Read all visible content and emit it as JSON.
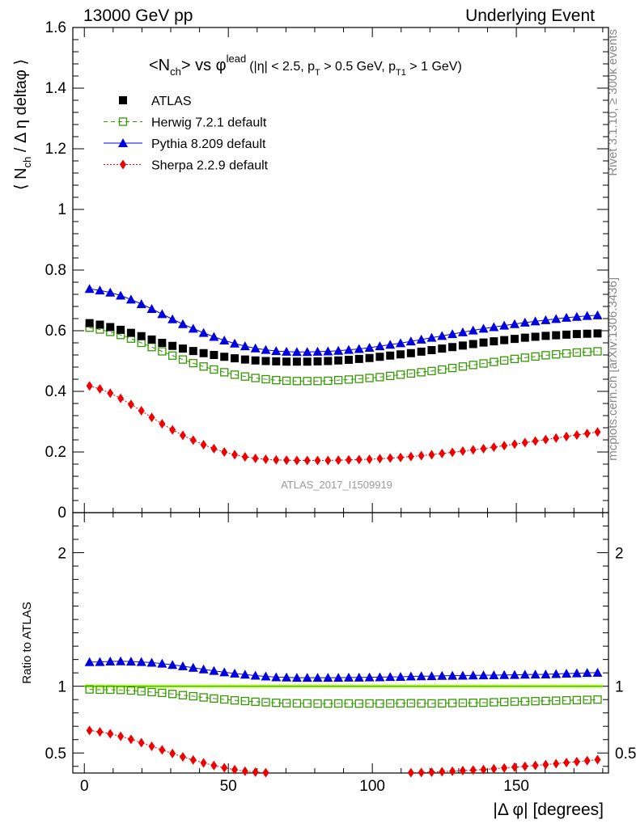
{
  "header": {
    "left": "13000 GeV pp",
    "right": "Underlying Event"
  },
  "side_labels": {
    "rivet": "Rivet 3.1.10, ≥ 300k events",
    "mcplots": "mcplots.cern.ch [arXiv:1306.3436]"
  },
  "chart_data": [
    {
      "type": "scatter",
      "panel": "main",
      "title_parts": {
        "prefix": "<N",
        "sub": "ch",
        "mid": "> vs φ",
        "sup": "lead",
        "cuts": "(|η| < 2.5, p",
        "cuts_sub1": "T",
        "cuts_mid": " > 0.5 GeV, p",
        "cuts_sub2": "T1",
        "cuts_end": " > 1 GeV)"
      },
      "ylabel": "⟨ N_ch / Δη deltaφ ⟩",
      "ylabel_parts": {
        "a": "⟨ N",
        "sub": "ch",
        "b": " / Δ η deltaφ ⟩"
      },
      "ylim": [
        0,
        1.6
      ],
      "yticks": [
        "0",
        "0.2",
        "0.4",
        "0.6",
        "0.8",
        "1",
        "1.2",
        "1.4",
        "1.6"
      ],
      "watermark": "ATLAS_2017_I1509919",
      "legend_position": "top-left",
      "x": [
        1.8,
        5.4,
        9,
        12.6,
        16.2,
        19.8,
        23.4,
        27,
        30.6,
        34.2,
        37.8,
        41.4,
        45,
        48.6,
        52.2,
        55.8,
        59.4,
        63,
        66.6,
        70.2,
        73.8,
        77.4,
        81,
        84.6,
        88.2,
        91.8,
        95.4,
        99,
        102.6,
        106.2,
        109.8,
        113.4,
        117,
        120.6,
        124.2,
        127.8,
        131.4,
        135,
        138.6,
        142.2,
        145.8,
        149.4,
        153,
        156.6,
        160.2,
        163.8,
        167.4,
        171,
        174.6,
        178.2
      ],
      "series": [
        {
          "name": "ATLAS",
          "color": "#000000",
          "marker": "square-filled",
          "values": [
            0.625,
            0.62,
            0.612,
            0.603,
            0.593,
            0.582,
            0.571,
            0.56,
            0.55,
            0.541,
            0.533,
            0.526,
            0.52,
            0.514,
            0.509,
            0.505,
            0.502,
            0.5,
            0.499,
            0.498,
            0.498,
            0.498,
            0.499,
            0.5,
            0.502,
            0.504,
            0.507,
            0.51,
            0.514,
            0.518,
            0.522,
            0.526,
            0.531,
            0.536,
            0.541,
            0.546,
            0.551,
            0.556,
            0.561,
            0.565,
            0.569,
            0.573,
            0.577,
            0.58,
            0.583,
            0.585,
            0.587,
            0.589,
            0.59,
            0.591
          ]
        },
        {
          "name": "Herwig 7.2.1 default",
          "color": "#339900",
          "marker": "square-open",
          "dash": "5,4",
          "values": [
            0.61,
            0.604,
            0.596,
            0.586,
            0.574,
            0.56,
            0.546,
            0.532,
            0.518,
            0.505,
            0.493,
            0.482,
            0.472,
            0.463,
            0.455,
            0.449,
            0.444,
            0.44,
            0.437,
            0.435,
            0.434,
            0.434,
            0.434,
            0.435,
            0.437,
            0.439,
            0.441,
            0.444,
            0.447,
            0.451,
            0.455,
            0.459,
            0.463,
            0.467,
            0.472,
            0.477,
            0.482,
            0.487,
            0.492,
            0.497,
            0.502,
            0.507,
            0.511,
            0.515,
            0.519,
            0.522,
            0.525,
            0.528,
            0.53,
            0.532
          ]
        },
        {
          "name": "Pythia 8.209 default",
          "color": "#0000dd",
          "marker": "triangle-filled",
          "values": [
            0.738,
            0.733,
            0.726,
            0.716,
            0.703,
            0.688,
            0.672,
            0.655,
            0.638,
            0.622,
            0.607,
            0.593,
            0.58,
            0.568,
            0.558,
            0.549,
            0.542,
            0.537,
            0.533,
            0.531,
            0.53,
            0.53,
            0.531,
            0.532,
            0.534,
            0.537,
            0.54,
            0.544,
            0.549,
            0.554,
            0.559,
            0.565,
            0.571,
            0.577,
            0.583,
            0.589,
            0.595,
            0.601,
            0.607,
            0.612,
            0.617,
            0.622,
            0.627,
            0.631,
            0.635,
            0.639,
            0.643,
            0.646,
            0.649,
            0.651
          ]
        },
        {
          "name": "Sherpa 2.2.9 default",
          "color": "#ee0000",
          "marker": "diamond-filled",
          "dash": "2,2",
          "values": [
            0.418,
            0.408,
            0.394,
            0.377,
            0.357,
            0.336,
            0.314,
            0.293,
            0.273,
            0.255,
            0.239,
            0.224,
            0.211,
            0.2,
            0.191,
            0.184,
            0.179,
            0.176,
            0.174,
            0.173,
            0.172,
            0.172,
            0.172,
            0.172,
            0.173,
            0.174,
            0.175,
            0.176,
            0.178,
            0.18,
            0.182,
            0.185,
            0.188,
            0.191,
            0.195,
            0.199,
            0.203,
            0.207,
            0.211,
            0.216,
            0.221,
            0.226,
            0.231,
            0.236,
            0.241,
            0.246,
            0.251,
            0.256,
            0.261,
            0.266
          ]
        }
      ]
    },
    {
      "type": "scatter",
      "panel": "ratio",
      "ylabel": "Ratio to ATLAS",
      "ylim": [
        0.35,
        2.3
      ],
      "yticks": [
        "0.5",
        "1",
        "2"
      ],
      "xlabel": "|Δ φ| [degrees]",
      "xlim": [
        -4,
        182
      ],
      "xticks": [
        "0",
        "50",
        "100",
        "150"
      ],
      "band": {
        "low": 0.985,
        "high": 1.015,
        "color": "#ccff66",
        "line_color": "#339900"
      },
      "series_ratio": [
        {
          "name": "Herwig 7.2.1 default",
          "color": "#339900",
          "values": [
            0.976,
            0.974,
            0.974,
            0.972,
            0.968,
            0.962,
            0.956,
            0.95,
            0.942,
            0.933,
            0.925,
            0.916,
            0.908,
            0.901,
            0.894,
            0.889,
            0.884,
            0.88,
            0.876,
            0.873,
            0.872,
            0.871,
            0.87,
            0.87,
            0.871,
            0.871,
            0.87,
            0.871,
            0.87,
            0.871,
            0.872,
            0.873,
            0.872,
            0.871,
            0.872,
            0.874,
            0.875,
            0.876,
            0.877,
            0.88,
            0.882,
            0.885,
            0.886,
            0.888,
            0.89,
            0.892,
            0.894,
            0.896,
            0.898,
            0.9
          ]
        },
        {
          "name": "Pythia 8.209 default",
          "color": "#0000dd",
          "values": [
            1.181,
            1.182,
            1.186,
            1.187,
            1.185,
            1.182,
            1.177,
            1.17,
            1.16,
            1.15,
            1.139,
            1.127,
            1.115,
            1.105,
            1.096,
            1.087,
            1.08,
            1.074,
            1.068,
            1.066,
            1.064,
            1.064,
            1.064,
            1.064,
            1.064,
            1.065,
            1.065,
            1.067,
            1.068,
            1.07,
            1.071,
            1.074,
            1.075,
            1.076,
            1.078,
            1.079,
            1.08,
            1.081,
            1.082,
            1.083,
            1.084,
            1.085,
            1.087,
            1.088,
            1.089,
            1.092,
            1.095,
            1.097,
            1.1,
            1.102
          ]
        },
        {
          "name": "Sherpa 2.2.9 default",
          "color": "#ee0000",
          "values": [
            0.669,
            0.658,
            0.644,
            0.625,
            0.602,
            0.577,
            0.55,
            0.523,
            0.496,
            0.471,
            0.448,
            0.426,
            0.406,
            0.389,
            0.375,
            0.364,
            0.357,
            0.352,
            0.349,
            0.347,
            0.345,
            0.345,
            0.345,
            0.344,
            0.345,
            0.345,
            0.345,
            0.345,
            0.346,
            0.347,
            0.349,
            0.352,
            0.354,
            0.356,
            0.36,
            0.364,
            0.368,
            0.372,
            0.376,
            0.382,
            0.388,
            0.394,
            0.4,
            0.407,
            0.413,
            0.42,
            0.428,
            0.435,
            0.442,
            0.45
          ]
        }
      ]
    }
  ]
}
